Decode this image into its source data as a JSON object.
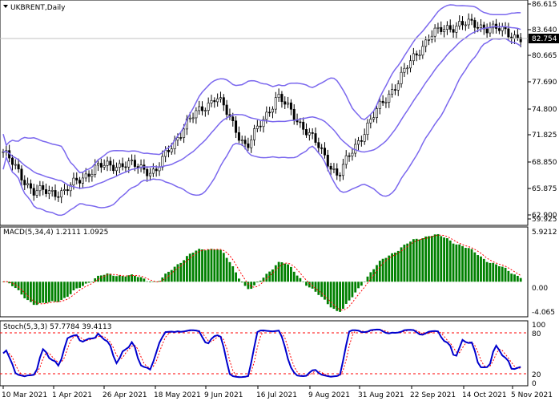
{
  "window": {
    "symbol_title": "UKBRENT,Daily"
  },
  "price_panel": {
    "current_price_label": "82.754",
    "y_ticks": [
      "86.615",
      "83.640",
      "80.665",
      "77.690",
      "74.800",
      "71.825",
      "68.850",
      "65.875",
      "62.900",
      "59.925"
    ]
  },
  "macd_panel": {
    "title": "MACD(5,34,4) 1.2111 1.0925",
    "y_ticks": [
      "5.9212",
      "0.00",
      "-4.065"
    ]
  },
  "stoch_panel": {
    "title": "Stoch(5,3,3) 57.7784 39.4113",
    "y_ticks": [
      "100",
      "80",
      "20",
      "0"
    ]
  },
  "x_ticks": [
    "10 Mar 2021",
    "1 Apr 2021",
    "26 Apr 2021",
    "18 May 2021",
    "9 Jun 2021",
    "16 Jul 2021",
    "9 Aug 2021",
    "31 Aug 2021",
    "22 Sep 2021",
    "14 Oct 2021",
    "5 Nov 2021"
  ],
  "colors": {
    "up_candle": "#000000",
    "bollinger": "#7b68ee",
    "macd_hist": "#008000",
    "macd_signal": "#ff0000",
    "stoch_main": "#0000cd",
    "stoch_signal": "#ff0000",
    "levels": "#ff0000"
  },
  "chart_data": [
    {
      "type": "candlestick",
      "title": "UKBRENT,Daily",
      "ylim": [
        59.925,
        86.615
      ],
      "indicators": [
        "Bollinger Bands"
      ],
      "last_price": 82.754,
      "close_approx": [
        {
          "date": "10 Mar 2021",
          "value": 68.5
        },
        {
          "date": "20 Mar 2021",
          "value": 63.5
        },
        {
          "date": "1 Apr 2021",
          "value": 63.5
        },
        {
          "date": "15 Apr 2021",
          "value": 66.5
        },
        {
          "date": "26 Apr 2021",
          "value": 67.0
        },
        {
          "date": "18 May 2021",
          "value": 66.0
        },
        {
          "date": "9 Jun 2021",
          "value": 72.0
        },
        {
          "date": "5 Jul 2021",
          "value": 75.5
        },
        {
          "date": "16 Jul 2021",
          "value": 69.0
        },
        {
          "date": "30 Jul 2021",
          "value": 75.5
        },
        {
          "date": "9 Aug 2021",
          "value": 71.0
        },
        {
          "date": "20 Aug 2021",
          "value": 65.5
        },
        {
          "date": "31 Aug 2021",
          "value": 72.0
        },
        {
          "date": "22 Sep 2021",
          "value": 77.5
        },
        {
          "date": "5 Oct 2021",
          "value": 83.0
        },
        {
          "date": "14 Oct 2021",
          "value": 84.5
        },
        {
          "date": "25 Oct 2021",
          "value": 84.0
        },
        {
          "date": "5 Nov 2021",
          "value": 82.754
        }
      ]
    },
    {
      "type": "bar",
      "title": "MACD(5,34,4) 1.2111 1.0925",
      "ylim": [
        -4.065,
        5.9212
      ],
      "series": [
        {
          "name": "MACD",
          "last": 1.2111
        },
        {
          "name": "Signal",
          "last": 1.0925
        }
      ]
    },
    {
      "type": "line",
      "title": "Stoch(5,3,3) 57.7784 39.4113",
      "ylim": [
        0,
        100
      ],
      "levels": [
        80,
        20
      ],
      "series": [
        {
          "name": "%K",
          "last": 57.7784
        },
        {
          "name": "%D",
          "last": 39.4113
        }
      ]
    }
  ]
}
